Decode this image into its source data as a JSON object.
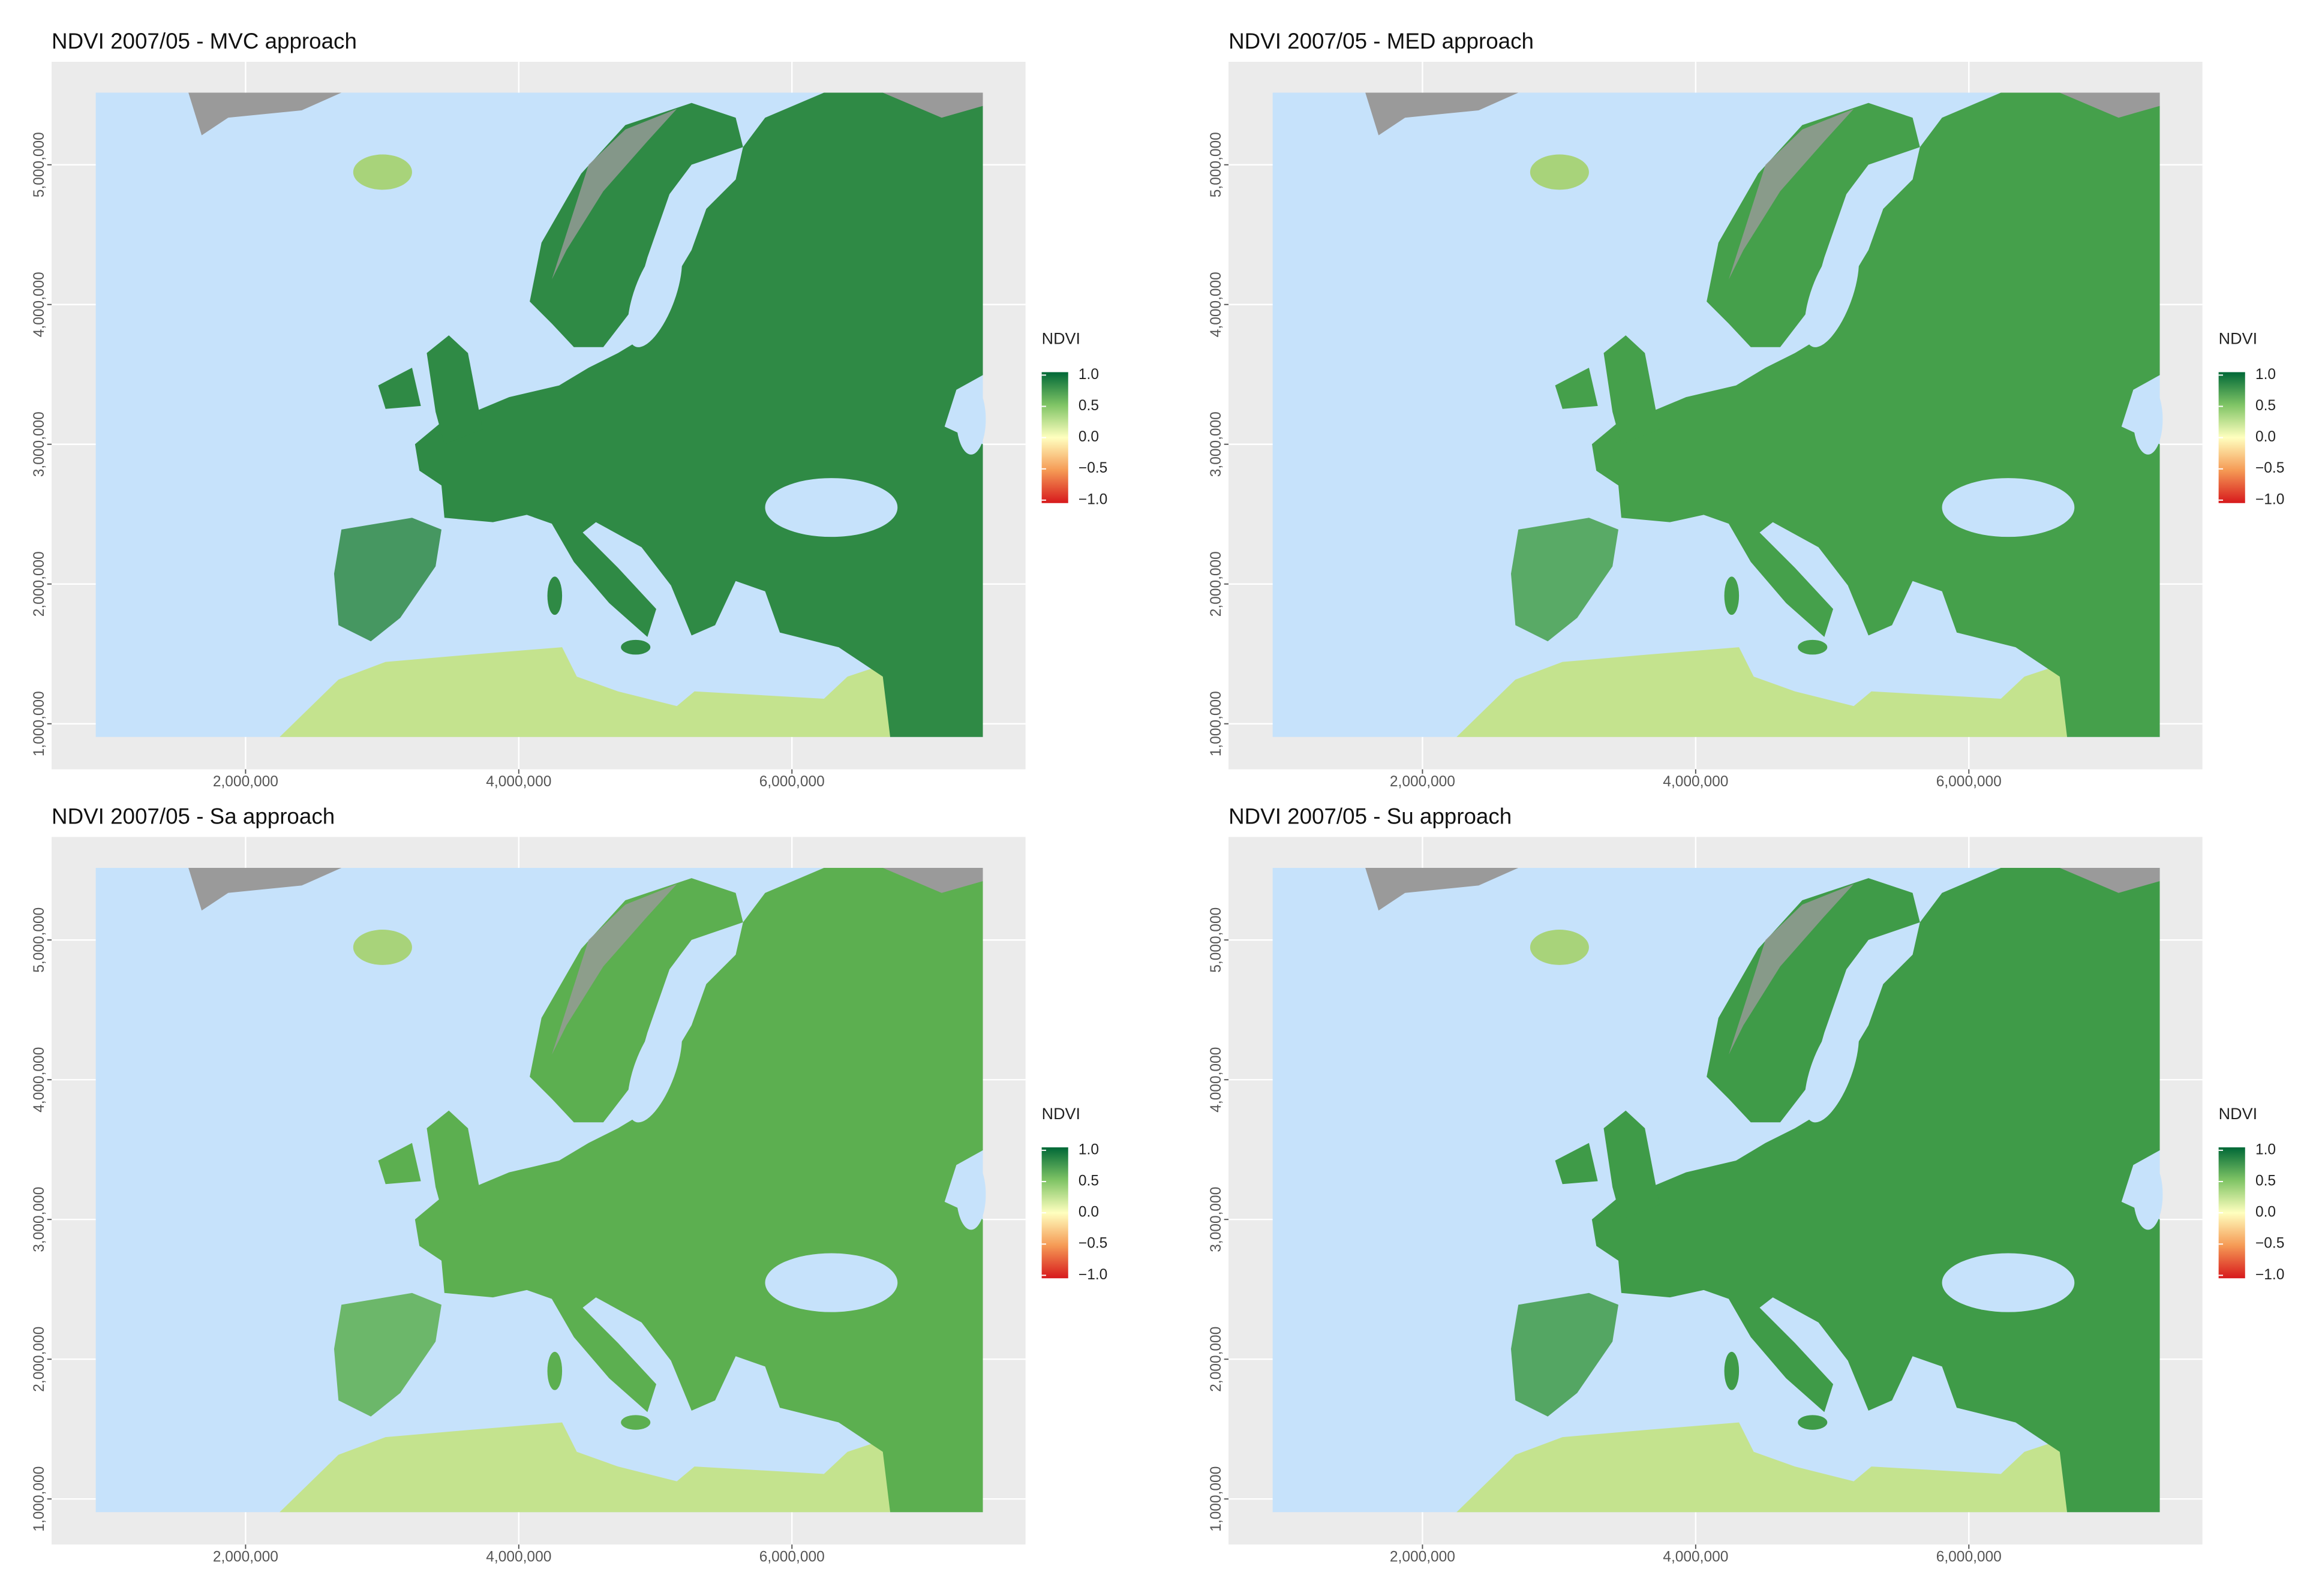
{
  "panels": [
    {
      "title": "NDVI 2007/05 - MVC approach",
      "color": "#2f8a45",
      "xlim": [
        580000,
        7710000
      ],
      "ylim": [
        674000,
        5737000
      ],
      "xticks": [
        {
          "value": 2000000,
          "label": "2,000,000"
        },
        {
          "value": 4000000,
          "label": "4,000,000"
        },
        {
          "value": 6000000,
          "label": "6,000,000"
        }
      ],
      "yticks": [
        {
          "value": 1000000,
          "label": "1,000,000"
        },
        {
          "value": 2000000,
          "label": "2,000,000"
        },
        {
          "value": 3000000,
          "label": "3,000,000"
        },
        {
          "value": 4000000,
          "label": "4,000,000"
        },
        {
          "value": 5000000,
          "label": "5,000,000"
        }
      ],
      "legend": {
        "title": "NDVI",
        "lim": [
          -1,
          1
        ],
        "ticks": [
          {
            "value": 1,
            "label": "1.0"
          },
          0.5,
          {
            "value": 0,
            "label": "0.0"
          },
          {
            "value": -0.5,
            "label": "−0.5"
          },
          {
            "value": -1,
            "label": "−1.0"
          }
        ]
      }
    },
    {
      "title": "NDVI 2007/05 - MED approach",
      "color": "#45a04b",
      "xlim": [
        580000,
        7710000
      ],
      "ylim": [
        674000,
        5737000
      ],
      "xticks": [
        {
          "value": 2000000,
          "label": "2,000,000"
        },
        {
          "value": 4000000,
          "label": "4,000,000"
        },
        {
          "value": 6000000,
          "label": "6,000,000"
        }
      ],
      "yticks": [
        {
          "value": 1000000,
          "label": "1,000,000"
        },
        {
          "value": 2000000,
          "label": "2,000,000"
        },
        {
          "value": 3000000,
          "label": "3,000,000"
        },
        {
          "value": 4000000,
          "label": "4,000,000"
        },
        {
          "value": 5000000,
          "label": "5,000,000"
        }
      ],
      "legend": {
        "title": "NDVI",
        "lim": [
          -1,
          1
        ],
        "ticks": [
          {
            "value": 1,
            "label": "1.0"
          },
          0.5,
          {
            "value": 0,
            "label": "0.0"
          },
          {
            "value": -0.5,
            "label": "−0.5"
          },
          {
            "value": -1,
            "label": "−1.0"
          }
        ]
      }
    },
    {
      "title": "NDVI 2007/05 - Sa approach",
      "color": "#5caf50",
      "xlim": [
        580000,
        7710000
      ],
      "ylim": [
        674000,
        5737000
      ],
      "xticks": [
        {
          "value": 2000000,
          "label": "2,000,000"
        },
        {
          "value": 4000000,
          "label": "4,000,000"
        },
        {
          "value": 6000000,
          "label": "6,000,000"
        }
      ],
      "yticks": [
        {
          "value": 1000000,
          "label": "1,000,000"
        },
        {
          "value": 2000000,
          "label": "2,000,000"
        },
        {
          "value": 3000000,
          "label": "3,000,000"
        },
        {
          "value": 4000000,
          "label": "4,000,000"
        },
        {
          "value": 5000000,
          "label": "5,000,000"
        }
      ],
      "legend": {
        "title": "NDVI",
        "lim": [
          -1,
          1
        ],
        "ticks": [
          {
            "value": 1,
            "label": "1.0"
          },
          0.5,
          {
            "value": 0,
            "label": "0.0"
          },
          {
            "value": -0.5,
            "label": "−0.5"
          },
          {
            "value": -1,
            "label": "−1.0"
          }
        ]
      }
    },
    {
      "title": "NDVI 2007/05 - Su approach",
      "color": "#3f9b48",
      "xlim": [
        580000,
        7710000
      ],
      "ylim": [
        674000,
        5737000
      ],
      "xticks": [
        {
          "value": 2000000,
          "label": "2,000,000"
        },
        {
          "value": 4000000,
          "label": "4,000,000"
        },
        {
          "value": 6000000,
          "label": "6,000,000"
        }
      ],
      "yticks": [
        {
          "value": 1000000,
          "label": "1,000,000"
        },
        {
          "value": 2000000,
          "label": "2,000,000"
        },
        {
          "value": 3000000,
          "label": "3,000,000"
        },
        {
          "value": 4000000,
          "label": "4,000,000"
        },
        {
          "value": 5000000,
          "label": "5,000,000"
        }
      ],
      "legend": {
        "title": "NDVI",
        "lim": [
          -1,
          1
        ],
        "ticks": [
          {
            "value": 1,
            "label": "1.0"
          },
          0.5,
          {
            "value": 0,
            "label": "0.0"
          },
          {
            "value": -0.5,
            "label": "−0.5"
          },
          {
            "value": -1,
            "label": "−1.0"
          }
        ]
      }
    }
  ]
}
